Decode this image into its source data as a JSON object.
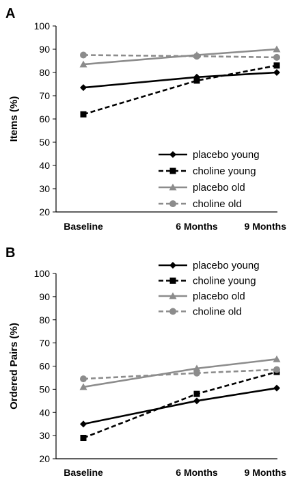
{
  "colors": {
    "black": "#000000",
    "gray": "#8c8c8c"
  },
  "chart_data": [
    {
      "type": "line",
      "panel": "A",
      "ylabel": "Items (%)",
      "ylim": [
        20,
        100
      ],
      "yticks": [
        20,
        30,
        40,
        50,
        60,
        70,
        80,
        90,
        100
      ],
      "categories": [
        "Baseline",
        "6 Months",
        "9 Months"
      ],
      "x": [
        0,
        6,
        9
      ],
      "grid": false,
      "legend_position": "bottom-right",
      "series": [
        {
          "name": "placebo young",
          "values": [
            73.5,
            78,
            80
          ],
          "color": "black",
          "dash": false,
          "marker": "diamond"
        },
        {
          "name": "choline young",
          "values": [
            62,
            76.5,
            83
          ],
          "color": "black",
          "dash": true,
          "marker": "square"
        },
        {
          "name": "placebo old",
          "values": [
            83.5,
            87.5,
            90
          ],
          "color": "gray",
          "dash": false,
          "marker": "triangle"
        },
        {
          "name": "choline old",
          "values": [
            87.5,
            87,
            86.5
          ],
          "color": "gray",
          "dash": true,
          "marker": "circle"
        }
      ]
    },
    {
      "type": "line",
      "panel": "B",
      "ylabel": "Ordered Pairs (%)",
      "ylim": [
        20,
        100
      ],
      "yticks": [
        20,
        30,
        40,
        50,
        60,
        70,
        80,
        90,
        100
      ],
      "categories": [
        "Baseline",
        "6 Months",
        "9 Months"
      ],
      "x": [
        0,
        6,
        9
      ],
      "grid": false,
      "legend_position": "top-right",
      "series": [
        {
          "name": "placebo young",
          "values": [
            35,
            45,
            50.5
          ],
          "color": "black",
          "dash": false,
          "marker": "diamond"
        },
        {
          "name": "choline young",
          "values": [
            29,
            48,
            57.5
          ],
          "color": "black",
          "dash": true,
          "marker": "square"
        },
        {
          "name": "placebo old",
          "values": [
            51,
            59,
            63
          ],
          "color": "gray",
          "dash": false,
          "marker": "triangle"
        },
        {
          "name": "choline old",
          "values": [
            54.5,
            57,
            58.5
          ],
          "color": "gray",
          "dash": true,
          "marker": "circle"
        }
      ]
    }
  ]
}
